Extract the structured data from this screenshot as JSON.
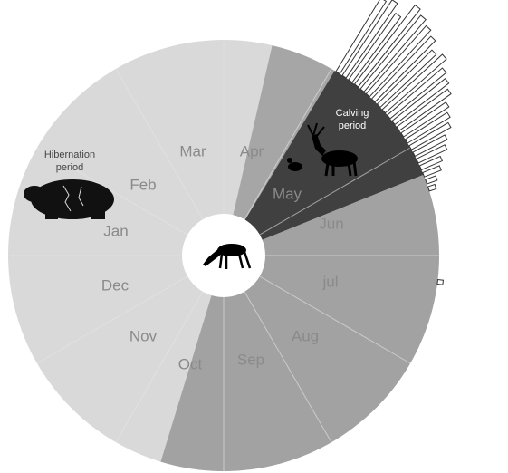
{
  "months": [
    "Jan",
    "Feb",
    "Mar",
    "Apr",
    "May",
    "Jun",
    "jul",
    "Aug",
    "Sep",
    "Oct",
    "Nov",
    "Dec"
  ],
  "periods": {
    "hibernation": [
      "Hibernation",
      "period"
    ],
    "calving": [
      "Calving",
      "period"
    ]
  },
  "radial_bars": {
    "angles": [
      32,
      34,
      36,
      38,
      40,
      42,
      44,
      46,
      48,
      50,
      52,
      54,
      56,
      58,
      60,
      62,
      64,
      66,
      68,
      70,
      72,
      97
    ],
    "values": [
      95,
      100,
      90,
      110,
      105,
      100,
      95,
      85,
      90,
      80,
      75,
      70,
      60,
      55,
      50,
      40,
      35,
      25,
      20,
      12,
      8,
      6
    ]
  }
}
